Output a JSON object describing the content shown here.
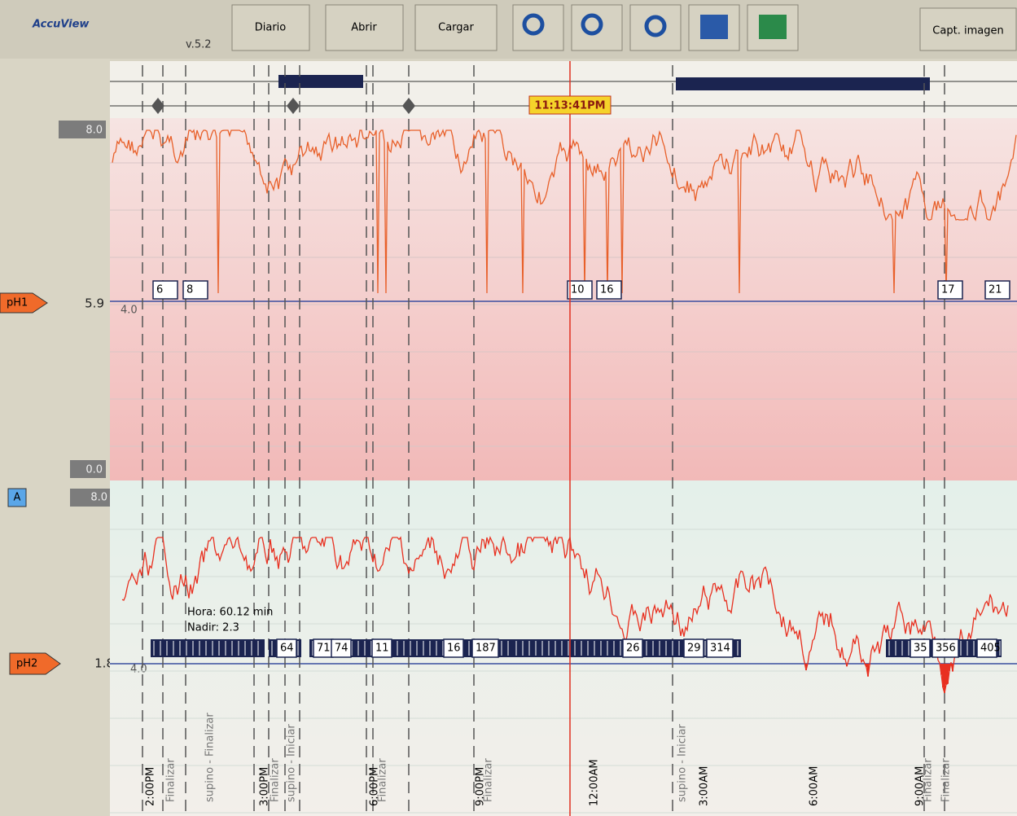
{
  "toolbar": {
    "logo": "AccuView",
    "version": "v.5.2",
    "buttons": [
      "Diario",
      "Abrir",
      "Cargar"
    ],
    "capture": "Capt. imagen"
  },
  "cursor_time": "11:13:41PM",
  "ph1": {
    "label": "pH1",
    "max": "8.0",
    "min": "0.0",
    "current": "5.9",
    "threshold": "4.0",
    "events": [
      "6",
      "8",
      "10",
      "16",
      "17",
      "21"
    ]
  },
  "ph2": {
    "channel": "A",
    "label": "pH2",
    "max": "8.0",
    "current": "1.8",
    "threshold": "4.0",
    "events": [
      "64",
      "71",
      "74",
      "11",
      "16",
      "187",
      "26",
      "29",
      "314",
      "35",
      "356",
      "405"
    ],
    "info": [
      "Hora: 60.12 min",
      "Nadir: 2.3"
    ]
  },
  "time_labels": [
    "2:00PM",
    "3:00PM",
    "6:00PM",
    "9:00PM",
    "12:00AM",
    "3:00AM",
    "6:00AM",
    "9:00AM"
  ],
  "markers": [
    "Finalizar",
    "supino - Finalizar",
    "Finalizar",
    "supino - Iniciar",
    "Finalizar",
    "Finalizar",
    "supino - Iniciar",
    "Finalizar",
    "Finalizar"
  ]
}
